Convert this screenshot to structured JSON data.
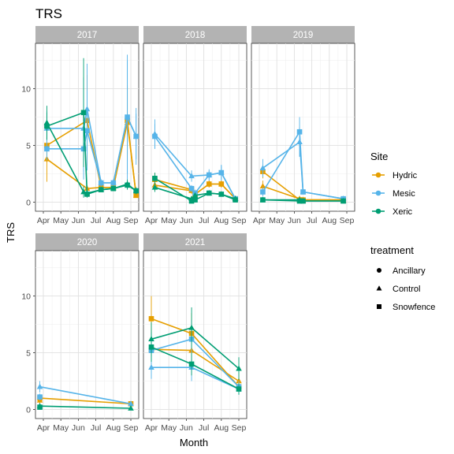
{
  "chart_data": {
    "type": "line",
    "title": "TRS",
    "xlabel": "Month",
    "ylabel": "TRS",
    "ylim": [
      -0.8,
      14
    ],
    "x_ticks": [
      "Apr",
      "May",
      "Jun",
      "Jul",
      "Aug",
      "Sep"
    ],
    "y_ticks": [
      0,
      5,
      10
    ],
    "grid": true,
    "legend_position": "right",
    "colors": {
      "Hydric": "#E69F00",
      "Mesic": "#56B4E9",
      "Xeric": "#009E73"
    },
    "site_legend": {
      "title": "Site",
      "items": [
        "Hydric",
        "Mesic",
        "Xeric"
      ]
    },
    "treatment_legend": {
      "title": "treatment",
      "items": [
        {
          "label": "Ancillary",
          "shape": "circle"
        },
        {
          "label": "Control",
          "shape": "triangle"
        },
        {
          "label": "Snowfence",
          "shape": "square"
        }
      ]
    },
    "panels": [
      {
        "label": "2017",
        "series": [
          {
            "site": "Hydric",
            "treatment": "Control",
            "points": [
              [
                4.2,
                3.8,
                2
              ],
              [
                6.5,
                1.2,
                0.3
              ],
              [
                7.3,
                1.3,
                0.3
              ],
              [
                8.0,
                1.3,
                0.2
              ],
              [
                8.8,
                7.0,
                3.3
              ],
              [
                9.3,
                0.6,
                0.1
              ]
            ]
          },
          {
            "site": "Hydric",
            "treatment": "Snowfence",
            "points": [
              [
                4.2,
                5.0,
                1.5
              ],
              [
                6.5,
                7.2,
                4.0
              ],
              [
                7.3,
                1.3,
                0.3
              ],
              [
                8.0,
                1.3,
                0.2
              ],
              [
                8.8,
                7.2,
                3.0
              ],
              [
                9.3,
                0.6,
                0.1
              ]
            ]
          },
          {
            "site": "Mesic",
            "treatment": "Control",
            "points": [
              [
                4.2,
                6.5,
                1.5
              ],
              [
                6.3,
                6.5,
                4.5
              ],
              [
                6.5,
                8.2,
                4.0
              ],
              [
                7.3,
                1.7,
                0.3
              ],
              [
                8.0,
                1.7,
                0.3
              ],
              [
                8.8,
                7.5,
                5.5
              ],
              [
                9.3,
                5.8,
                2.5
              ]
            ]
          },
          {
            "site": "Mesic",
            "treatment": "Snowfence",
            "points": [
              [
                4.2,
                4.7,
                1.0
              ],
              [
                6.3,
                4.7,
                2.0
              ],
              [
                6.5,
                6.3,
                3.5
              ],
              [
                7.3,
                1.7,
                0.3
              ],
              [
                8.0,
                1.7,
                0.3
              ],
              [
                8.8,
                7.5,
                5.0
              ],
              [
                9.3,
                5.8,
                2.0
              ]
            ]
          },
          {
            "site": "Xeric",
            "treatment": "Control",
            "points": [
              [
                4.2,
                7.0,
                1.5
              ],
              [
                6.3,
                0.9,
                0.5
              ],
              [
                6.5,
                0.8,
                0.3
              ],
              [
                7.3,
                1.1,
                0.2
              ],
              [
                8.0,
                1.2,
                0.2
              ],
              [
                8.8,
                1.6,
                0.4
              ],
              [
                9.3,
                1.0,
                0.3
              ]
            ]
          },
          {
            "site": "Xeric",
            "treatment": "Snowfence",
            "points": [
              [
                4.2,
                6.7,
                1.2
              ],
              [
                6.3,
                7.9,
                4.8
              ],
              [
                6.5,
                0.7,
                0.3
              ],
              [
                7.3,
                1.1,
                0.2
              ],
              [
                8.0,
                1.2,
                0.2
              ],
              [
                8.8,
                1.5,
                0.4
              ],
              [
                9.3,
                1.0,
                0.3
              ]
            ]
          }
        ]
      },
      {
        "label": "2018",
        "series": [
          {
            "site": "Hydric",
            "treatment": "Control",
            "points": [
              [
                4.2,
                1.5,
                0.5
              ],
              [
                6.3,
                1.0,
                0.3
              ],
              [
                6.5,
                0.7,
                0.2
              ],
              [
                7.3,
                1.6,
                0.3
              ],
              [
                8.0,
                1.6,
                0.3
              ],
              [
                8.8,
                0.3,
                0.1
              ]
            ]
          },
          {
            "site": "Hydric",
            "treatment": "Snowfence",
            "points": [
              [
                4.2,
                2.0,
                0.6
              ],
              [
                6.3,
                1.1,
                0.3
              ],
              [
                6.5,
                0.7,
                0.2
              ],
              [
                7.3,
                1.6,
                0.3
              ],
              [
                8.0,
                1.6,
                0.3
              ],
              [
                8.8,
                0.3,
                0.1
              ]
            ]
          },
          {
            "site": "Mesic",
            "treatment": "Control",
            "points": [
              [
                4.2,
                6.0,
                1.3
              ],
              [
                6.3,
                2.3,
                0.5
              ],
              [
                7.3,
                2.4,
                0.5
              ],
              [
                8.0,
                2.6,
                0.7
              ],
              [
                8.8,
                0.3,
                0.1
              ]
            ]
          },
          {
            "site": "Mesic",
            "treatment": "Snowfence",
            "points": [
              [
                4.2,
                5.8,
                1.1
              ],
              [
                6.3,
                1.2,
                0.3
              ],
              [
                6.5,
                0.8,
                0.3
              ],
              [
                7.3,
                2.4,
                0.4
              ],
              [
                8.0,
                2.6,
                0.6
              ],
              [
                8.8,
                0.3,
                0.1
              ]
            ]
          },
          {
            "site": "Xeric",
            "treatment": "Control",
            "points": [
              [
                4.2,
                1.3,
                0.4
              ],
              [
                6.3,
                0.3,
                0.1
              ],
              [
                6.5,
                0.6,
                0.2
              ],
              [
                7.3,
                0.8,
                0.2
              ],
              [
                8.0,
                0.7,
                0.2
              ],
              [
                8.8,
                0.3,
                0.1
              ]
            ]
          },
          {
            "site": "Xeric",
            "treatment": "Snowfence",
            "points": [
              [
                4.2,
                2.1,
                0.5
              ],
              [
                6.3,
                0.1,
                0.1
              ],
              [
                6.5,
                0.2,
                0.1
              ],
              [
                7.3,
                0.8,
                0.2
              ],
              [
                8.0,
                0.7,
                0.2
              ],
              [
                8.8,
                0.2,
                0.1
              ]
            ]
          }
        ]
      },
      {
        "label": "2019",
        "series": [
          {
            "site": "Hydric",
            "treatment": "Control",
            "points": [
              [
                4.2,
                1.4,
                0.5
              ],
              [
                6.3,
                0.3,
                0.1
              ],
              [
                6.5,
                0.2,
                0.1
              ],
              [
                8.8,
                0.2,
                0.1
              ]
            ]
          },
          {
            "site": "Hydric",
            "treatment": "Snowfence",
            "points": [
              [
                4.2,
                2.7,
                0.6
              ],
              [
                6.3,
                0.2,
                0.1
              ],
              [
                6.5,
                0.2,
                0.1
              ],
              [
                8.8,
                0.2,
                0.1
              ]
            ]
          },
          {
            "site": "Mesic",
            "treatment": "Control",
            "points": [
              [
                4.2,
                3.0,
                0.8
              ],
              [
                6.3,
                5.3,
                1.3
              ],
              [
                6.5,
                0.9,
                0.2
              ],
              [
                8.8,
                0.3,
                0.1
              ]
            ]
          },
          {
            "site": "Mesic",
            "treatment": "Snowfence",
            "points": [
              [
                4.2,
                0.9,
                0.4
              ],
              [
                6.3,
                6.2,
                1.3
              ],
              [
                6.5,
                0.9,
                0.2
              ],
              [
                8.8,
                0.3,
                0.1
              ]
            ]
          },
          {
            "site": "Xeric",
            "treatment": "Control",
            "points": [
              [
                4.2,
                0.2,
                0.1
              ],
              [
                6.3,
                0.2,
                0.1
              ],
              [
                6.5,
                0.1,
                0.1
              ],
              [
                8.8,
                0.1,
                0.1
              ]
            ]
          },
          {
            "site": "Xeric",
            "treatment": "Snowfence",
            "points": [
              [
                4.2,
                0.2,
                0.1
              ],
              [
                6.3,
                0.1,
                0.1
              ],
              [
                6.5,
                0.1,
                0.1
              ],
              [
                8.8,
                0.1,
                0.1
              ]
            ]
          }
        ]
      },
      {
        "label": "2020",
        "series": [
          {
            "site": "Hydric",
            "treatment": "Control",
            "points": [
              [
                3.8,
                0.8,
                0.3
              ]
            ]
          },
          {
            "site": "Hydric",
            "treatment": "Snowfence",
            "points": [
              [
                3.8,
                1.0,
                0.3
              ],
              [
                9.0,
                0.5,
                0.1
              ]
            ]
          },
          {
            "site": "Mesic",
            "treatment": "Control",
            "points": [
              [
                3.8,
                2.0,
                0.5
              ],
              [
                9.0,
                0.5,
                0.1
              ]
            ]
          },
          {
            "site": "Mesic",
            "treatment": "Snowfence",
            "points": [
              [
                3.8,
                1.1,
                0.3
              ]
            ]
          },
          {
            "site": "Xeric",
            "treatment": "Control",
            "points": [
              [
                3.8,
                0.3,
                0.1
              ],
              [
                9.0,
                0.1,
                0.1
              ]
            ]
          },
          {
            "site": "Xeric",
            "treatment": "Snowfence",
            "points": [
              [
                3.8,
                0.2,
                0.1
              ]
            ]
          }
        ]
      },
      {
        "label": "2021",
        "series": [
          {
            "site": "Hydric",
            "treatment": "Control",
            "points": [
              [
                4.0,
                5.3,
                1.5
              ],
              [
                6.3,
                5.2,
                1.5
              ],
              [
                9.0,
                2.5,
                0.8
              ]
            ]
          },
          {
            "site": "Hydric",
            "treatment": "Snowfence",
            "points": [
              [
                4.0,
                8.0,
                2.0
              ],
              [
                6.3,
                6.7,
                1.8
              ],
              [
                9.0,
                2.0,
                0.6
              ]
            ]
          },
          {
            "site": "Mesic",
            "treatment": "Control",
            "points": [
              [
                4.0,
                3.7,
                1.0
              ],
              [
                6.3,
                3.7,
                1.2
              ],
              [
                9.0,
                1.8,
                0.5
              ]
            ]
          },
          {
            "site": "Mesic",
            "treatment": "Snowfence",
            "points": [
              [
                4.0,
                5.2,
                1.2
              ],
              [
                6.3,
                6.2,
                1.7
              ],
              [
                9.0,
                2.0,
                0.5
              ]
            ]
          },
          {
            "site": "Xeric",
            "treatment": "Control",
            "points": [
              [
                4.0,
                6.2,
                1.5
              ],
              [
                6.3,
                7.2,
                1.8
              ],
              [
                9.0,
                3.6,
                1.0
              ]
            ]
          },
          {
            "site": "Xeric",
            "treatment": "Snowfence",
            "points": [
              [
                4.0,
                5.5,
                1.3
              ],
              [
                6.3,
                4.0,
                1.0
              ],
              [
                9.0,
                1.8,
                0.5
              ]
            ]
          }
        ]
      }
    ]
  }
}
